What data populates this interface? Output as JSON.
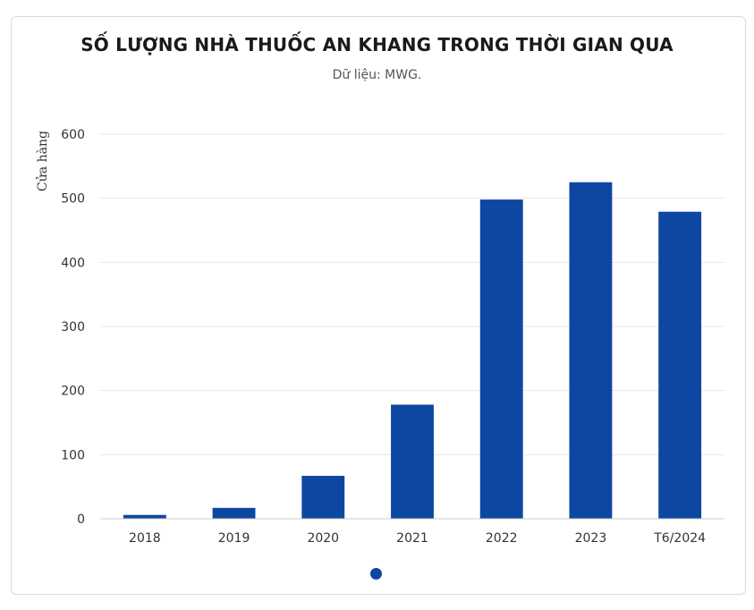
{
  "chart_data": {
    "type": "bar",
    "title": "SỐ LƯỢNG NHÀ THUỐC AN KHANG TRONG THỜI GIAN QUA",
    "subtitle": "Dữ liệu: MWG.",
    "xlabel": "",
    "ylabel": "Cửa hàng",
    "categories": [
      "2018",
      "2019",
      "2020",
      "2021",
      "2022",
      "2023",
      "T6/2024"
    ],
    "values": [
      6,
      17,
      67,
      178,
      498,
      525,
      479
    ],
    "ylim": [
      0,
      600
    ],
    "yticks": [
      "0",
      "100",
      "200",
      "300",
      "400",
      "500",
      "600"
    ],
    "grid": true,
    "bar_color": "#0d47a1"
  }
}
